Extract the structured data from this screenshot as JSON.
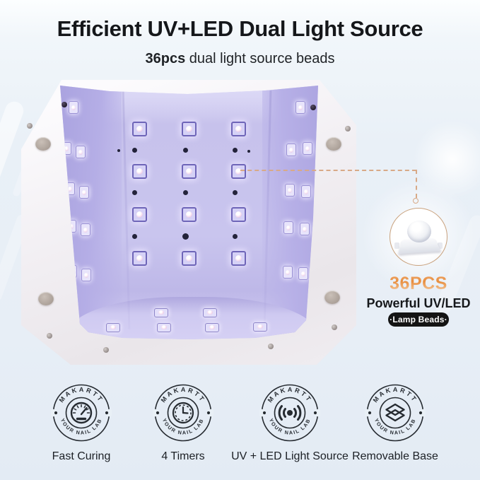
{
  "header": {
    "title": "Efficient UV+LED Dual Light Source",
    "subtitle_bold": "36pcs",
    "subtitle_rest": " dual light source beads"
  },
  "callout": {
    "count": "36PCS",
    "title": "Powerful UV/LED",
    "pill": "·Lamp Beads·"
  },
  "stamp": {
    "top_text": "MAKARTT",
    "bottom_text": "YOUR NAIL LAB"
  },
  "features": [
    {
      "label": "Fast Curing",
      "icon": "speedometer-icon"
    },
    {
      "label": "4 Timers",
      "icon": "clock-icon"
    },
    {
      "label": "UV + LED Light Source",
      "icon": "light-emission-icon"
    },
    {
      "label": "Removable Base",
      "icon": "layers-icon"
    }
  ],
  "lamp_photo": {
    "bead_total": 36,
    "back_wall_beads": 12,
    "left_wall_beads": 9,
    "right_wall_beads": 9,
    "floor_beads": 6
  },
  "colors": {
    "accent_orange": "#E88D3D",
    "connector_tan": "#D8A987",
    "circle_outline": "#C9A27E",
    "pill_bg": "#141414",
    "lamp_interior": "#C8C3EE",
    "stamp_ink": "#262B31"
  }
}
